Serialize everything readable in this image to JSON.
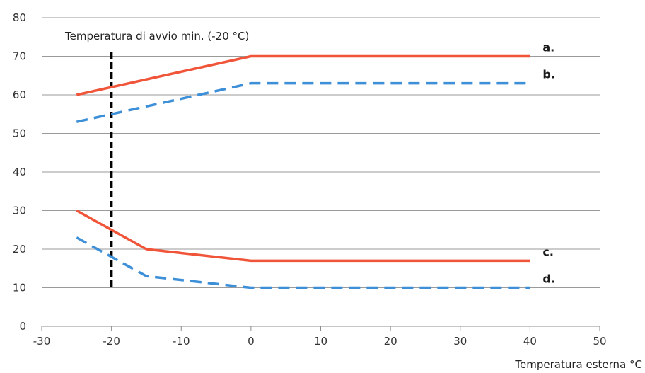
{
  "chart_data": {
    "type": "line",
    "title": "",
    "xlabel": "Temperatura esterna °C",
    "ylabel": "",
    "xlim": [
      -30,
      50
    ],
    "ylim": [
      0,
      80
    ],
    "x_ticks": [
      -30,
      -20,
      -10,
      0,
      10,
      20,
      30,
      40,
      50
    ],
    "y_ticks": [
      0,
      10,
      20,
      30,
      40,
      50,
      60,
      70,
      80
    ],
    "grid": "horizontal",
    "series": [
      {
        "name": "a.",
        "color": "#f0553a",
        "style": "solid",
        "x": [
          -25,
          0,
          40
        ],
        "y": [
          60,
          70,
          70
        ]
      },
      {
        "name": "b.",
        "color": "#3d8fd8",
        "style": "dashed",
        "x": [
          -25,
          0,
          40
        ],
        "y": [
          53,
          63,
          63
        ]
      },
      {
        "name": "c.",
        "color": "#f0553a",
        "style": "solid",
        "x": [
          -25,
          -15,
          0,
          40
        ],
        "y": [
          30,
          20,
          17,
          17
        ]
      },
      {
        "name": "d.",
        "color": "#3d8fd8",
        "style": "dashed",
        "x": [
          -25,
          -15,
          0,
          40
        ],
        "y": [
          23,
          13,
          10,
          10
        ]
      }
    ],
    "vertical_marker": {
      "x": -20,
      "y_range": [
        10,
        71
      ],
      "color": "#000000",
      "style": "dashed",
      "label": "Temperatura di avvio min. (-20 °C)"
    }
  }
}
